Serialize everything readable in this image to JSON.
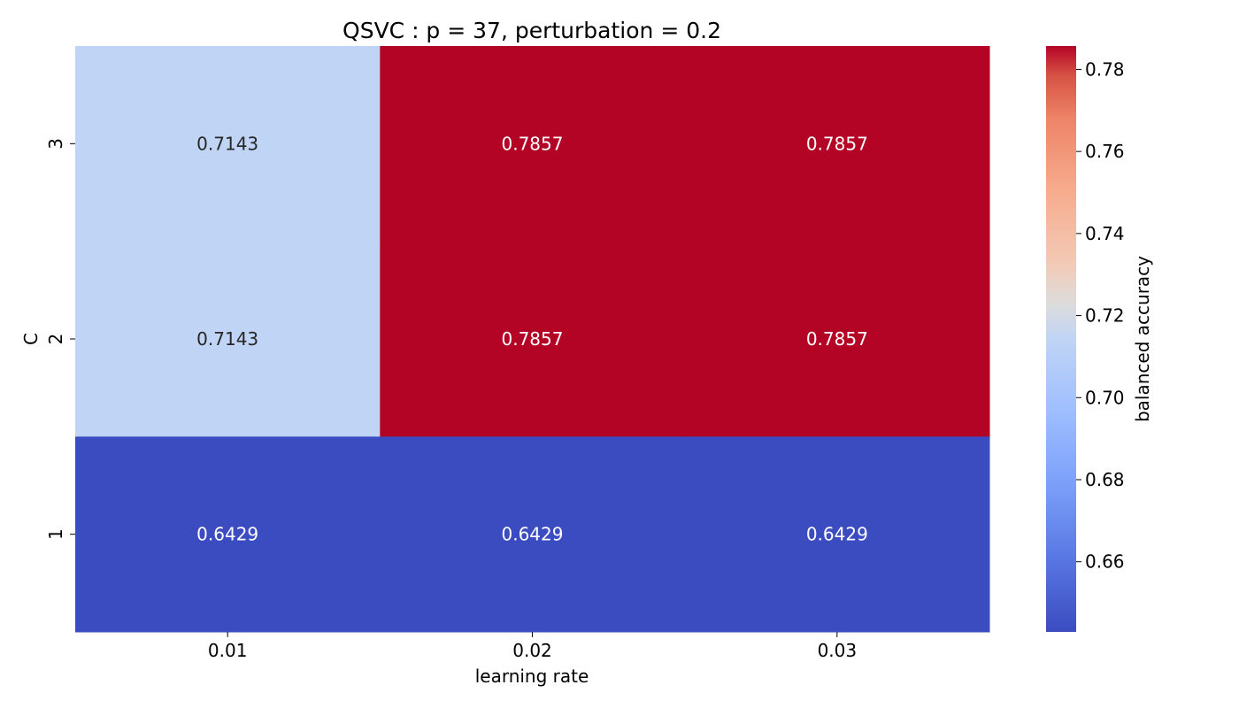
{
  "chart_data": {
    "type": "heatmap",
    "title": "QSVC : p = 37, perturbation = 0.2",
    "xlabel": "learning rate",
    "ylabel": "C",
    "x_categories": [
      "0.01",
      "0.02",
      "0.03"
    ],
    "y_categories": [
      "3",
      "2",
      "1"
    ],
    "values": [
      [
        0.7143,
        0.7857,
        0.7857
      ],
      [
        0.7143,
        0.7857,
        0.7857
      ],
      [
        0.6429,
        0.6429,
        0.6429
      ]
    ],
    "value_labels": [
      [
        "0.7143",
        "0.7857",
        "0.7857"
      ],
      [
        "0.7143",
        "0.7857",
        "0.7857"
      ],
      [
        "0.6429",
        "0.6429",
        "0.6429"
      ]
    ],
    "colormap": "coolwarm",
    "vmin": 0.6429,
    "vmax": 0.7857,
    "colorbar": {
      "label": "balanced accuracy",
      "ticks": [
        "0.66",
        "0.68",
        "0.70",
        "0.72",
        "0.74",
        "0.76",
        "0.78"
      ],
      "tick_values": [
        0.66,
        0.68,
        0.7,
        0.72,
        0.74,
        0.76,
        0.78
      ],
      "placement": "right"
    },
    "grid": false
  }
}
